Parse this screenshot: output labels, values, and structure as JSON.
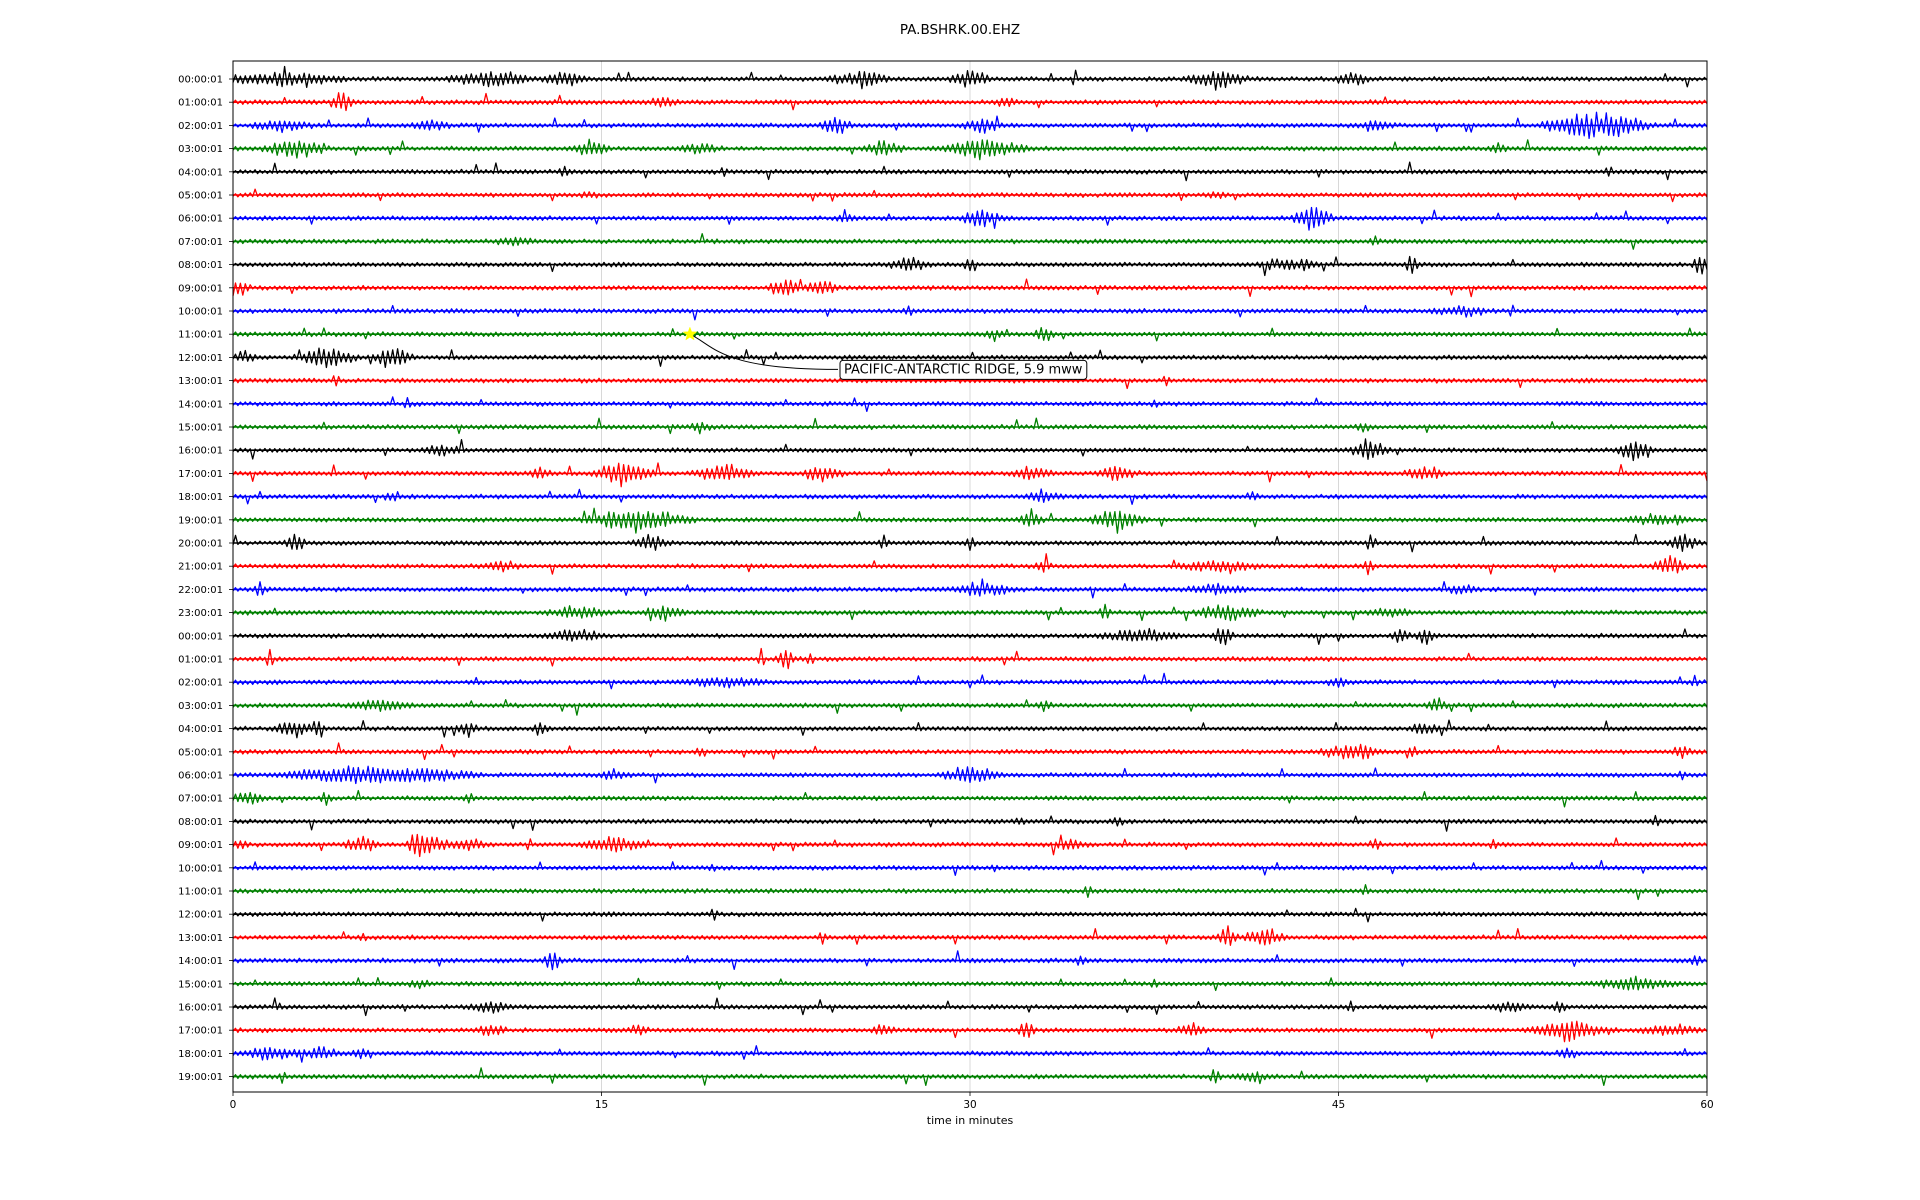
{
  "chart_data": {
    "type": "line",
    "title": "PA.BSHRK.00.EHZ",
    "xlabel": "time in minutes",
    "ylabel": "",
    "xlim": [
      0,
      60
    ],
    "x_ticks": [
      0,
      15,
      30,
      45,
      60
    ],
    "x_grid": true,
    "row_colors": [
      "#000000",
      "#ff0000",
      "#0000ff",
      "#008000"
    ],
    "row_labels": [
      "00:00:01",
      "01:00:01",
      "02:00:01",
      "03:00:01",
      "04:00:01",
      "05:00:01",
      "06:00:01",
      "07:00:01",
      "08:00:01",
      "09:00:01",
      "10:00:01",
      "11:00:01",
      "12:00:01",
      "13:00:01",
      "14:00:01",
      "15:00:01",
      "16:00:01",
      "17:00:01",
      "18:00:01",
      "19:00:01",
      "20:00:01",
      "21:00:01",
      "22:00:01",
      "23:00:01",
      "00:00:01",
      "01:00:01",
      "02:00:01",
      "03:00:01",
      "04:00:01",
      "05:00:01",
      "06:00:01",
      "07:00:01",
      "08:00:01",
      "09:00:01",
      "10:00:01",
      "11:00:01",
      "12:00:01",
      "13:00:01",
      "14:00:01",
      "15:00:01",
      "16:00:01",
      "17:00:01",
      "18:00:01",
      "19:00:01"
    ],
    "row_activity": [
      [
        [
          2,
          3,
          0.7
        ],
        [
          10.5,
          2,
          0.9
        ],
        [
          13.5,
          1,
          0.8
        ],
        [
          25.5,
          1.5,
          0.8
        ],
        [
          30,
          1,
          0.8
        ],
        [
          40,
          1.5,
          1
        ],
        [
          45.5,
          0.8,
          0.8
        ]
      ],
      [
        [
          4.5,
          0.5,
          1.2
        ],
        [
          17.5,
          0.8,
          0.4
        ],
        [
          31.5,
          0.5,
          0.5
        ]
      ],
      [
        [
          2,
          1.5,
          0.5
        ],
        [
          8,
          1,
          0.5
        ],
        [
          24.5,
          0.8,
          1
        ],
        [
          30.5,
          1,
          0.7
        ],
        [
          46.5,
          1,
          0.5
        ],
        [
          55.5,
          2.5,
          1.6
        ]
      ],
      [
        [
          2.5,
          1.5,
          1
        ],
        [
          14.5,
          1,
          0.8
        ],
        [
          19,
          1,
          0.5
        ],
        [
          26.5,
          1,
          0.6
        ],
        [
          30.5,
          2,
          1.2
        ],
        [
          51.5,
          0.5,
          0.5
        ]
      ],
      [
        [
          13.5,
          0.3,
          0.6
        ],
        [
          20,
          0.2,
          0.6
        ],
        [
          56,
          0.2,
          0.6
        ]
      ],
      [
        [
          14.5,
          0.5,
          0.3
        ],
        [
          40,
          0.5,
          0.3
        ]
      ],
      [
        [
          25,
          0.5,
          0.5
        ],
        [
          30.5,
          1,
          1
        ],
        [
          44,
          1,
          1.4
        ]
      ],
      [
        [
          11.5,
          1,
          0.4
        ],
        [
          46.5,
          0.3,
          0.4
        ]
      ],
      [
        [
          27.5,
          1,
          0.8
        ],
        [
          30,
          0.3,
          0.7
        ],
        [
          43,
          1.5,
          0.6
        ],
        [
          48,
          0.3,
          1
        ],
        [
          59.8,
          0.5,
          1.1
        ]
      ],
      [
        [
          0.3,
          0.5,
          1.1
        ],
        [
          22.5,
          0.8,
          0.9
        ],
        [
          24,
          0.8,
          0.8
        ]
      ],
      [
        [
          27.5,
          0.3,
          0.5
        ],
        [
          50,
          1.5,
          0.5
        ]
      ],
      [
        [
          31,
          0.5,
          0.7
        ],
        [
          33,
          0.5,
          0.8
        ]
      ],
      [
        [
          0.5,
          0.5,
          0.8
        ],
        [
          3.8,
          1.5,
          1
        ],
        [
          6.5,
          1,
          1.1
        ]
      ],
      [
        [
          4.2,
          0.2,
          0.6
        ],
        [
          38,
          0.2,
          0.4
        ]
      ],
      [
        [
          7.1,
          0.2,
          0.6
        ],
        [
          37.5,
          0.2,
          0.4
        ]
      ],
      [
        [
          19,
          0.5,
          0.6
        ],
        [
          46,
          0.4,
          0.5
        ]
      ],
      [
        [
          8.5,
          1,
          0.6
        ],
        [
          46.2,
          1,
          0.9
        ],
        [
          57,
          1,
          0.9
        ]
      ],
      [
        [
          12.5,
          0.5,
          0.7
        ],
        [
          16,
          1.5,
          1.2
        ],
        [
          20,
          1.5,
          0.9
        ],
        [
          24,
          1,
          0.8
        ],
        [
          32.5,
          1,
          0.8
        ],
        [
          36,
          1,
          0.7
        ],
        [
          48.5,
          1,
          0.7
        ]
      ],
      [
        [
          6.5,
          0.4,
          0.6
        ],
        [
          33,
          1,
          0.6
        ],
        [
          41.5,
          0.3,
          0.5
        ]
      ],
      [
        [
          16.5,
          2.5,
          1.1
        ],
        [
          32.5,
          0.6,
          1.1
        ],
        [
          36,
          1.3,
          1.1
        ],
        [
          58,
          1.5,
          0.6
        ]
      ],
      [
        [
          2.5,
          0.5,
          0.9
        ],
        [
          17,
          1,
          0.8
        ],
        [
          26.5,
          0.3,
          0.9
        ],
        [
          30,
          0.3,
          0.8
        ],
        [
          46.3,
          0.3,
          0.8
        ],
        [
          59,
          0.8,
          0.9
        ]
      ],
      [
        [
          11,
          1,
          0.4
        ],
        [
          33,
          0.4,
          0.6
        ],
        [
          40,
          2,
          0.6
        ],
        [
          46.2,
          0.3,
          0.8
        ],
        [
          58.5,
          0.8,
          1.1
        ]
      ],
      [
        [
          1.1,
          0.3,
          0.9
        ],
        [
          30.5,
          1.5,
          0.7
        ],
        [
          40,
          1.5,
          0.5
        ],
        [
          50,
          1,
          0.4
        ]
      ],
      [
        [
          14,
          1.5,
          0.6
        ],
        [
          17.5,
          1,
          0.7
        ],
        [
          35.5,
          0.3,
          1
        ],
        [
          40.5,
          1.5,
          0.8
        ],
        [
          47,
          1,
          0.5
        ]
      ],
      [
        [
          14,
          1.5,
          0.6
        ],
        [
          37,
          2,
          0.7
        ],
        [
          40.3,
          0.5,
          1.1
        ],
        [
          47.5,
          0.5,
          0.8
        ],
        [
          48.5,
          0.5,
          0.9
        ]
      ],
      [
        [
          1.5,
          0.2,
          1
        ],
        [
          21.5,
          0.2,
          1.1
        ],
        [
          22.5,
          0.5,
          1
        ],
        [
          23.5,
          0.2,
          0.9
        ]
      ],
      [
        [
          20,
          2,
          0.5
        ],
        [
          45,
          0.5,
          0.6
        ],
        [
          59.5,
          0.2,
          0.5
        ]
      ],
      [
        [
          6,
          1.5,
          0.6
        ],
        [
          33,
          0.4,
          0.5
        ],
        [
          49,
          0.5,
          0.7
        ]
      ],
      [
        [
          2.5,
          1,
          0.9
        ],
        [
          3.5,
          0.3,
          1
        ],
        [
          9.5,
          0.6,
          0.6
        ],
        [
          12.5,
          0.4,
          0.8
        ],
        [
          48.5,
          0.8,
          0.6
        ]
      ],
      [
        [
          19,
          0.2,
          0.5
        ],
        [
          45.5,
          1.5,
          0.8
        ],
        [
          48,
          0.3,
          0.7
        ],
        [
          59,
          0.5,
          0.8
        ]
      ],
      [
        [
          4.5,
          3,
          0.8
        ],
        [
          7.5,
          3,
          0.7
        ],
        [
          15.5,
          0.8,
          0.5
        ],
        [
          30,
          1.5,
          0.8
        ],
        [
          59,
          0.2,
          0.6
        ]
      ],
      [
        [
          0.6,
          0.8,
          0.6
        ],
        [
          3.8,
          0.3,
          0.5
        ],
        [
          9.6,
          0.3,
          0.5
        ]
      ],
      [
        [
          32,
          0.3,
          0.5
        ],
        [
          36,
          0.3,
          0.5
        ],
        [
          57.9,
          0.2,
          0.6
        ]
      ],
      [
        [
          0.3,
          0.5,
          0.5
        ],
        [
          5.2,
          0.8,
          0.9
        ],
        [
          7.5,
          0.5,
          1.1
        ],
        [
          8,
          1,
          0.9
        ],
        [
          9.5,
          1,
          0.7
        ],
        [
          15.5,
          1.5,
          0.8
        ],
        [
          34,
          1,
          0.5
        ],
        [
          46.5,
          0.3,
          0.6
        ],
        [
          51.3,
          0.2,
          0.6
        ]
      ],
      [
        [
          19.5,
          0.2,
          0.6
        ],
        [
          31,
          0.2,
          0.5
        ]
      ],
      [
        [
          34.8,
          0.2,
          0.5
        ],
        [
          46.1,
          0.2,
          0.5
        ]
      ],
      [
        [
          19.6,
          0.2,
          0.7
        ]
      ],
      [
        [
          5.3,
          0.2,
          0.5
        ],
        [
          24,
          0.2,
          0.5
        ],
        [
          40.5,
          0.5,
          1
        ],
        [
          42,
          1,
          1
        ]
      ],
      [
        [
          13,
          0.5,
          1
        ],
        [
          34.5,
          0.3,
          0.5
        ],
        [
          59.5,
          0.4,
          0.5
        ]
      ],
      [
        [
          7.6,
          0.5,
          0.6
        ],
        [
          37.5,
          0.2,
          0.6
        ],
        [
          57,
          2,
          0.7
        ]
      ],
      [
        [
          1.9,
          0.2,
          0.5
        ],
        [
          10.5,
          1,
          0.6
        ],
        [
          45.5,
          0.2,
          0.7
        ],
        [
          52,
          1,
          0.5
        ],
        [
          54,
          0.3,
          0.8
        ]
      ],
      [
        [
          10.5,
          0.7,
          0.7
        ],
        [
          16.5,
          0.5,
          0.5
        ],
        [
          26.5,
          0.6,
          0.6
        ],
        [
          32.3,
          0.4,
          1
        ],
        [
          39,
          0.7,
          0.9
        ],
        [
          54.5,
          2,
          1.1
        ],
        [
          58.5,
          1.5,
          0.6
        ]
      ],
      [
        [
          1.5,
          1.5,
          0.6
        ],
        [
          3.5,
          1.2,
          0.5
        ],
        [
          5.2,
          0.5,
          0.5
        ],
        [
          54.3,
          0.5,
          0.6
        ]
      ],
      [
        [
          2,
          0.2,
          0.6
        ],
        [
          40,
          0.3,
          0.8
        ],
        [
          41.5,
          1,
          0.4
        ]
      ]
    ],
    "annotation": {
      "text": "PACIFIC-ANTARCTIC RIDGE, 5.9 mww",
      "x": 18.6,
      "row": 11,
      "marker_color": "#ffff00"
    }
  }
}
